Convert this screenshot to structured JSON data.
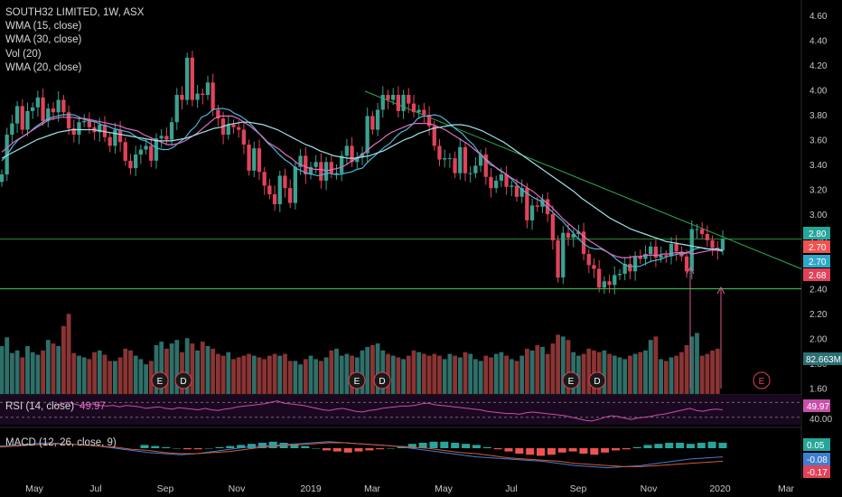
{
  "header": {
    "symbol_line": "SOUTH32 LIMITED, 1W, ASX",
    "indicators": [
      "WMA (15, close)",
      "WMA (30, close)",
      "Vol (20)",
      "WMA (20, close)"
    ]
  },
  "colors": {
    "background": "#000000",
    "up": "#3aa18f",
    "down": "#e0435a",
    "vol_up": "#2f6f69",
    "vol_down": "#8a3434",
    "wma15": "#4fb5d8",
    "wma20": "#e070c0",
    "wma30": "#9fe3e8",
    "trendline": "#2ea84f",
    "support": "#38b24a",
    "rsi": "#c84fa8",
    "macd_line": "#3f7fd0",
    "signal_line": "#d55a3a",
    "hist_up": "#26a69a",
    "hist_down": "#ef5350",
    "axis_text": "#c8c8c8",
    "arrow": "#d85a90"
  },
  "chart_data": [
    {
      "type": "candlestick",
      "title": "SOUTH32 LIMITED, 1W, ASX",
      "ylim": [
        1.42,
        4.7
      ],
      "y_ticks": [
        "4.60",
        "4.40",
        "4.20",
        "4.00",
        "3.80",
        "3.60",
        "3.40",
        "3.20",
        "3.00",
        "2.80",
        "2.60",
        "2.40",
        "2.20",
        "2.00",
        "1.80",
        "1.60"
      ],
      "x_ticks": [
        "May",
        "Jul",
        "Sep",
        "Nov",
        "2019",
        "Mar",
        "May",
        "Jul",
        "Sep",
        "Nov",
        "2020",
        "Mar"
      ],
      "close": [
        3.32,
        3.64,
        3.73,
        3.87,
        3.68,
        3.83,
        3.86,
        3.94,
        3.75,
        3.85,
        3.82,
        3.92,
        3.82,
        3.69,
        3.64,
        3.74,
        3.75,
        3.7,
        3.66,
        3.72,
        3.62,
        3.55,
        3.68,
        3.58,
        3.43,
        3.37,
        3.48,
        3.52,
        3.55,
        3.43,
        3.61,
        3.63,
        3.6,
        3.74,
        3.96,
        3.92,
        4.26,
        3.92,
        3.97,
        3.96,
        4.06,
        3.84,
        3.77,
        3.64,
        3.72,
        3.7,
        3.68,
        3.56,
        3.35,
        3.53,
        3.34,
        3.23,
        3.16,
        3.08,
        3.31,
        3.21,
        3.09,
        3.38,
        3.47,
        3.32,
        3.38,
        3.42,
        3.27,
        3.42,
        3.33,
        3.33,
        3.47,
        3.55,
        3.42,
        3.46,
        3.49,
        3.79,
        3.68,
        3.84,
        3.96,
        3.92,
        3.96,
        3.83,
        3.96,
        3.89,
        3.82,
        3.84,
        3.8,
        3.71,
        3.55,
        3.44,
        3.45,
        3.45,
        3.33,
        3.54,
        3.33,
        3.33,
        3.39,
        3.48,
        3.3,
        3.21,
        3.27,
        3.32,
        3.22,
        3.23,
        3.14,
        3.21,
        2.95,
        3.07,
        3.06,
        3.12,
        3.0,
        2.79,
        2.49,
        2.85,
        2.81,
        2.84,
        2.86,
        2.68,
        2.59,
        2.56,
        2.41,
        2.46,
        2.43,
        2.51,
        2.52,
        2.6,
        2.54,
        2.66,
        2.64,
        2.68,
        2.74,
        2.65,
        2.67,
        2.66,
        2.76,
        2.7,
        2.66,
        2.54,
        2.88,
        2.88,
        2.84,
        2.79,
        2.73,
        2.71,
        2.8
      ],
      "series": [
        {
          "name": "WMA (15, close)",
          "values": [
            3.43,
            3.48,
            3.55,
            3.6,
            3.63,
            3.66,
            3.7,
            3.73,
            3.76,
            3.78,
            3.79,
            3.8,
            3.8,
            3.8,
            3.78,
            3.76,
            3.75,
            3.74,
            3.72,
            3.71,
            3.69,
            3.68,
            3.67,
            3.66,
            3.63,
            3.6,
            3.59,
            3.56,
            3.53,
            3.52,
            3.52,
            3.54,
            3.58,
            3.61,
            3.67,
            3.71,
            3.78,
            3.8,
            3.84,
            3.85,
            3.85,
            3.84,
            3.81,
            3.79,
            3.76,
            3.72,
            3.67,
            3.62,
            3.57,
            3.53,
            3.48,
            3.44,
            3.41,
            3.37,
            3.35,
            3.33,
            3.32,
            3.31,
            3.32,
            3.33,
            3.32,
            3.32,
            3.33,
            3.34,
            3.36,
            3.37,
            3.42,
            3.46,
            3.5,
            3.54,
            3.57,
            3.62,
            3.66,
            3.68,
            3.72,
            3.77,
            3.79,
            3.79,
            3.8,
            3.79,
            3.76,
            3.72,
            3.68,
            3.65,
            3.6,
            3.56,
            3.5,
            3.45,
            3.4,
            3.38,
            3.35,
            3.32,
            3.28,
            3.23,
            3.19,
            3.16,
            3.13,
            3.11,
            3.07,
            3.03,
            2.99,
            2.95,
            2.9,
            2.85,
            2.8,
            2.76,
            2.73,
            2.72,
            2.72,
            2.7,
            2.67,
            2.63,
            2.6,
            2.58,
            2.58,
            2.58,
            2.6,
            2.62,
            2.63,
            2.64,
            2.66,
            2.67,
            2.68,
            2.68,
            2.7,
            2.72,
            2.73,
            2.72,
            2.72,
            2.71,
            2.7
          ]
        },
        {
          "name": "WMA (20, close)",
          "values": [
            3.5,
            3.54,
            3.58,
            3.61,
            3.64,
            3.67,
            3.7,
            3.73,
            3.76,
            3.77,
            3.78,
            3.78,
            3.78,
            3.77,
            3.77,
            3.76,
            3.75,
            3.74,
            3.73,
            3.72,
            3.71,
            3.69,
            3.68,
            3.67,
            3.64,
            3.62,
            3.6,
            3.58,
            3.56,
            3.56,
            3.57,
            3.59,
            3.62,
            3.65,
            3.69,
            3.73,
            3.77,
            3.79,
            3.79,
            3.79,
            3.77,
            3.74,
            3.71,
            3.67,
            3.63,
            3.58,
            3.55,
            3.52,
            3.48,
            3.45,
            3.41,
            3.39,
            3.37,
            3.36,
            3.36,
            3.35,
            3.36,
            3.37,
            3.39,
            3.42,
            3.45,
            3.48,
            3.52,
            3.56,
            3.59,
            3.63,
            3.66,
            3.68,
            3.7,
            3.72,
            3.73,
            3.73,
            3.73,
            3.72,
            3.7,
            3.68,
            3.65,
            3.62,
            3.59,
            3.56,
            3.52,
            3.48,
            3.44,
            3.4,
            3.36,
            3.33,
            3.3,
            3.27,
            3.24,
            3.21,
            3.18,
            3.14,
            3.1,
            3.06,
            3.01,
            2.96,
            2.92,
            2.88,
            2.84,
            2.8,
            2.77,
            2.74,
            2.71,
            2.68,
            2.66,
            2.65,
            2.65,
            2.66,
            2.66,
            2.67,
            2.67,
            2.67,
            2.68,
            2.68,
            2.69,
            2.69,
            2.69,
            2.68,
            2.69,
            2.7,
            2.71,
            2.71,
            2.71
          ]
        },
        {
          "name": "WMA (30, close)",
          "values": [
            3.45,
            3.48,
            3.51,
            3.54,
            3.57,
            3.6,
            3.62,
            3.64,
            3.66,
            3.67,
            3.68,
            3.68,
            3.68,
            3.68,
            3.67,
            3.66,
            3.65,
            3.64,
            3.63,
            3.62,
            3.61,
            3.6,
            3.59,
            3.59,
            3.59,
            3.6,
            3.61,
            3.63,
            3.65,
            3.67,
            3.69,
            3.7,
            3.72,
            3.73,
            3.74,
            3.74,
            3.73,
            3.72,
            3.7,
            3.68,
            3.65,
            3.62,
            3.59,
            3.56,
            3.54,
            3.51,
            3.49,
            3.47,
            3.46,
            3.45,
            3.45,
            3.46,
            3.47,
            3.49,
            3.51,
            3.54,
            3.57,
            3.6,
            3.62,
            3.65,
            3.67,
            3.69,
            3.7,
            3.71,
            3.72,
            3.72,
            3.71,
            3.69,
            3.67,
            3.64,
            3.61,
            3.58,
            3.54,
            3.5,
            3.46,
            3.42,
            3.38,
            3.34,
            3.3,
            3.26,
            3.22,
            3.18,
            3.13,
            3.09,
            3.05,
            3.01,
            2.97,
            2.94,
            2.91,
            2.88,
            2.86,
            2.84,
            2.82,
            2.8,
            2.78,
            2.77,
            2.76,
            2.75,
            2.74,
            2.73,
            2.72,
            2.72,
            2.71
          ]
        }
      ],
      "price_labels": [
        "2.80",
        "2.70",
        "2.70",
        "2.68"
      ],
      "support_level": 2.4,
      "resistance_level": 2.8,
      "trendline": [
        [
          3.99,
          2.8
        ],
        [
          2.56,
          0.0
        ]
      ],
      "earnings_markers": [
        "E",
        "D",
        "E",
        "D",
        "E",
        "D",
        "E"
      ]
    },
    {
      "type": "bar",
      "title": "Vol (20)",
      "ylim": [
        0,
        112
      ],
      "volume_label": "82.663M",
      "values": [
        55,
        65,
        47,
        50,
        42,
        55,
        48,
        45,
        50,
        62,
        58,
        55,
        78,
        92,
        47,
        44,
        42,
        40,
        48,
        50,
        45,
        38,
        38,
        42,
        52,
        50,
        44,
        40,
        34,
        38,
        56,
        60,
        52,
        58,
        62,
        48,
        64,
        58,
        50,
        60,
        55,
        52,
        46,
        44,
        48,
        40,
        42,
        44,
        46,
        44,
        42,
        40,
        44,
        46,
        44,
        46,
        38,
        38,
        34,
        40,
        44,
        40,
        38,
        42,
        50,
        52,
        44,
        46,
        44,
        42,
        50,
        54,
        56,
        58,
        50,
        46,
        44,
        42,
        40,
        44,
        50,
        48,
        46,
        44,
        46,
        44,
        40,
        46,
        44,
        42,
        48,
        46,
        40,
        38,
        44,
        42,
        46,
        48,
        44,
        40,
        38,
        44,
        52,
        50,
        56,
        54,
        46,
        58,
        68,
        66,
        62,
        48,
        44,
        46,
        52,
        50,
        48,
        50,
        46,
        44,
        42,
        40,
        44,
        46,
        48,
        50,
        62,
        66,
        40,
        38,
        42,
        44,
        48,
        56,
        66,
        70,
        44,
        46,
        50,
        52
      ]
    },
    {
      "type": "line",
      "title": "RSI (14, close)",
      "value_label": "49.97",
      "low_label": "40.00",
      "ylim": [
        30,
        70
      ],
      "values": [
        55,
        58,
        60,
        58,
        56,
        57,
        58,
        56,
        55,
        56,
        54,
        56,
        55,
        54,
        52,
        53,
        54,
        52,
        51,
        53,
        52,
        51,
        50,
        52,
        50,
        49,
        51,
        52,
        54,
        55,
        56,
        57,
        58,
        60,
        62,
        59,
        58,
        57,
        56,
        54,
        52,
        50,
        49,
        51,
        52,
        50,
        48,
        47,
        49,
        50,
        52,
        53,
        54,
        55,
        55,
        56,
        58,
        59,
        57,
        56,
        55,
        54,
        53,
        52,
        51,
        50,
        48,
        47,
        46,
        45,
        45,
        44,
        46,
        47,
        46,
        45,
        44,
        43,
        42,
        40,
        38,
        36,
        35,
        37,
        40,
        42,
        41,
        39,
        37,
        39,
        40,
        41,
        43,
        44,
        46,
        48,
        50,
        52,
        49,
        48,
        50,
        51,
        50
      ]
    },
    {
      "type": "bar",
      "title": "MACD (12, 26, close, 9)",
      "value_labels": [
        "0.05",
        "-0.08",
        "-0.17"
      ],
      "ylim": [
        -0.22,
        0.14
      ],
      "histogram": [
        0.03,
        0.02,
        0.01,
        0.0,
        -0.01,
        -0.01,
        0.0,
        0.01,
        0.02,
        0.03,
        0.04,
        0.05,
        0.06,
        0.05,
        0.04,
        0.02,
        0.0,
        -0.02,
        -0.03,
        -0.04,
        -0.03,
        -0.02,
        -0.01,
        0.0,
        0.02,
        0.04,
        0.05,
        0.06,
        0.06,
        0.05,
        0.04,
        0.03,
        0.01,
        -0.01,
        -0.03,
        -0.05,
        -0.06,
        -0.07,
        -0.06,
        -0.04,
        -0.03,
        -0.05,
        -0.06,
        -0.04,
        -0.02,
        -0.01,
        0.01,
        0.03,
        0.04,
        0.05,
        0.05,
        0.04,
        0.05,
        0.06,
        0.05
      ],
      "series": [
        {
          "name": "MACD",
          "values": [
            0.02,
            0.03,
            0.04,
            0.05,
            0.04,
            0.03,
            0.02,
            0.0,
            -0.02,
            -0.04,
            -0.05,
            -0.06,
            -0.05,
            -0.03,
            -0.01,
            0.01,
            0.02,
            0.03,
            0.04,
            0.05,
            0.06,
            0.05,
            0.04,
            0.03,
            0.02,
            0.0,
            -0.02,
            -0.04,
            -0.06,
            -0.08,
            -0.09,
            -0.1,
            -0.11,
            -0.12,
            -0.14,
            -0.16,
            -0.17,
            -0.18,
            -0.17,
            -0.16,
            -0.14,
            -0.12,
            -0.1,
            -0.09,
            -0.08
          ]
        },
        {
          "name": "Signal",
          "values": [
            0.01,
            0.02,
            0.03,
            0.04,
            0.04,
            0.03,
            0.02,
            0.01,
            -0.01,
            -0.02,
            -0.04,
            -0.05,
            -0.05,
            -0.04,
            -0.03,
            -0.01,
            0.01,
            0.02,
            0.03,
            0.04,
            0.05,
            0.05,
            0.04,
            0.03,
            0.02,
            0.01,
            0.0,
            -0.02,
            -0.04,
            -0.05,
            -0.07,
            -0.09,
            -0.1,
            -0.11,
            -0.12,
            -0.14,
            -0.15,
            -0.16,
            -0.17,
            -0.17,
            -0.16,
            -0.15,
            -0.14,
            -0.13,
            -0.12
          ]
        }
      ]
    }
  ],
  "rsi_legend": {
    "label": "RSI (14, close)",
    "value": "49.97"
  },
  "macd_legend": {
    "label": "MACD (12, 26, close, 9)"
  }
}
